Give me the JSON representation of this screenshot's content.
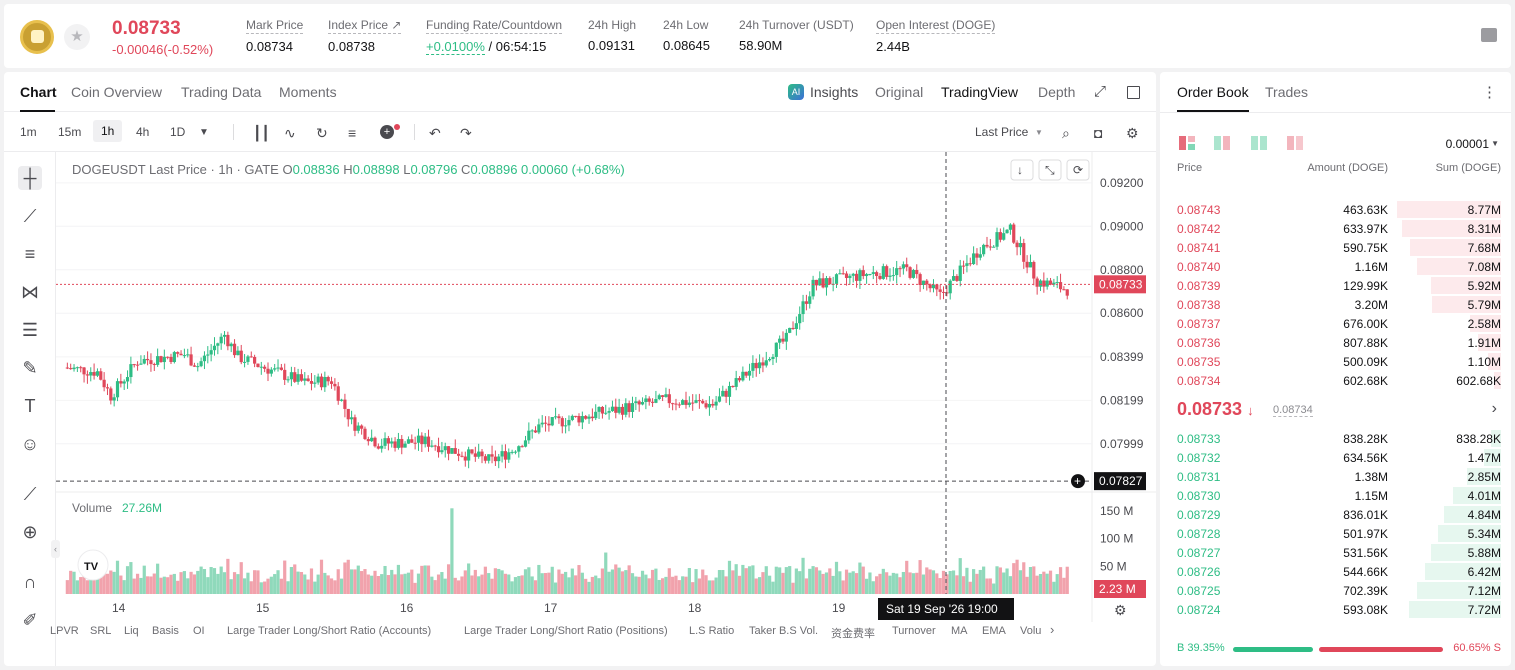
{
  "header": {
    "last_price": "0.08733",
    "change": "-0.00046(-0.52%)",
    "stats": [
      {
        "label": "Mark Price",
        "value": "0.08734"
      },
      {
        "label": "Index Price ↗",
        "value": "0.08738"
      },
      {
        "label": "Funding Rate/Countdown",
        "value": "+0.0100%",
        "value2": " / 06:54:15"
      },
      {
        "label": "24h High",
        "value": "0.09131"
      },
      {
        "label": "24h Low",
        "value": "0.08645"
      },
      {
        "label": "24h Turnover (USDT)",
        "value": "58.90M"
      },
      {
        "label": "Open Interest (DOGE)",
        "value": "2.44B"
      }
    ]
  },
  "chart_tabs": [
    "Chart",
    "Coin Overview",
    "Trading Data",
    "Moments"
  ],
  "view_tabs": [
    "Insights",
    "Original",
    "TradingView",
    "Depth"
  ],
  "timeframes": [
    "1m",
    "15m",
    "1h",
    "4h",
    "1D"
  ],
  "price_source": "Last Price",
  "legend": {
    "symbol": "DOGEUSDT Last Price · 1h · GATE",
    "o": "0.08836",
    "h": "0.08898",
    "l": "0.08796",
    "c": "0.08896",
    "chg": "0.00060 (+0.68%)"
  },
  "volume_legend": {
    "label": "Volume",
    "value": "27.26M"
  },
  "price_axis": [
    "0.09200",
    "0.09000",
    "0.08800",
    "0.08600",
    "0.08399",
    "0.08199",
    "0.07999"
  ],
  "volume_axis": [
    "150 M",
    "100 M",
    "50 M"
  ],
  "date_axis": [
    "14",
    "15",
    "16",
    "17",
    "18",
    "19"
  ],
  "price_tags": {
    "last": "0.08733",
    "cross": "0.07827",
    "volume": "2.23 M"
  },
  "crosshair_time": "Sat 19 Sep '26   19:00",
  "indicators": [
    "LPVR",
    "SRL",
    "Liq",
    "Basis",
    "OI",
    "Large Trader Long/Short Ratio (Accounts)",
    "Large Trader Long/Short Ratio (Positions)",
    "L.S Ratio",
    "Taker B.S Vol.",
    "资金费率",
    "Turnover",
    "MA",
    "EMA",
    "Volu"
  ],
  "orderbook": {
    "tabs": [
      "Order Book",
      "Trades"
    ],
    "precision": "0.00001",
    "headers": [
      "Price",
      "Amount (DOGE)",
      "Sum (DOGE)"
    ],
    "asks": [
      {
        "price": "0.08743",
        "amount": "463.63K",
        "sum": "8.77M"
      },
      {
        "price": "0.08742",
        "amount": "633.97K",
        "sum": "8.31M"
      },
      {
        "price": "0.08741",
        "amount": "590.75K",
        "sum": "7.68M"
      },
      {
        "price": "0.08740",
        "amount": "1.16M",
        "sum": "7.08M"
      },
      {
        "price": "0.08739",
        "amount": "129.99K",
        "sum": "5.92M"
      },
      {
        "price": "0.08738",
        "amount": "3.20M",
        "sum": "5.79M"
      },
      {
        "price": "0.08737",
        "amount": "676.00K",
        "sum": "2.58M"
      },
      {
        "price": "0.08736",
        "amount": "807.88K",
        "sum": "1.91M"
      },
      {
        "price": "0.08735",
        "amount": "500.09K",
        "sum": "1.10M"
      },
      {
        "price": "0.08734",
        "amount": "602.68K",
        "sum": "602.68K"
      }
    ],
    "mid_price": "0.08733",
    "mid_ref": "0.08734",
    "bids": [
      {
        "price": "0.08733",
        "amount": "838.28K",
        "sum": "838.28K"
      },
      {
        "price": "0.08732",
        "amount": "634.56K",
        "sum": "1.47M"
      },
      {
        "price": "0.08731",
        "amount": "1.38M",
        "sum": "2.85M"
      },
      {
        "price": "0.08730",
        "amount": "1.15M",
        "sum": "4.01M"
      },
      {
        "price": "0.08729",
        "amount": "836.01K",
        "sum": "4.84M"
      },
      {
        "price": "0.08728",
        "amount": "501.97K",
        "sum": "5.34M"
      },
      {
        "price": "0.08727",
        "amount": "531.56K",
        "sum": "5.88M"
      },
      {
        "price": "0.08726",
        "amount": "544.66K",
        "sum": "6.42M"
      },
      {
        "price": "0.08725",
        "amount": "702.39K",
        "sum": "7.12M"
      },
      {
        "price": "0.08724",
        "amount": "593.08K",
        "sum": "7.72M"
      }
    ],
    "buy_label": "B",
    "buy_ratio": "39.35%",
    "sell_ratio": "60.65%",
    "sell_label": "S",
    "buy_fraction": 0.3935
  },
  "colors": {
    "up": "#2ebd85",
    "down": "#e0475a",
    "text": "#121214",
    "muted": "#6d6d72"
  }
}
